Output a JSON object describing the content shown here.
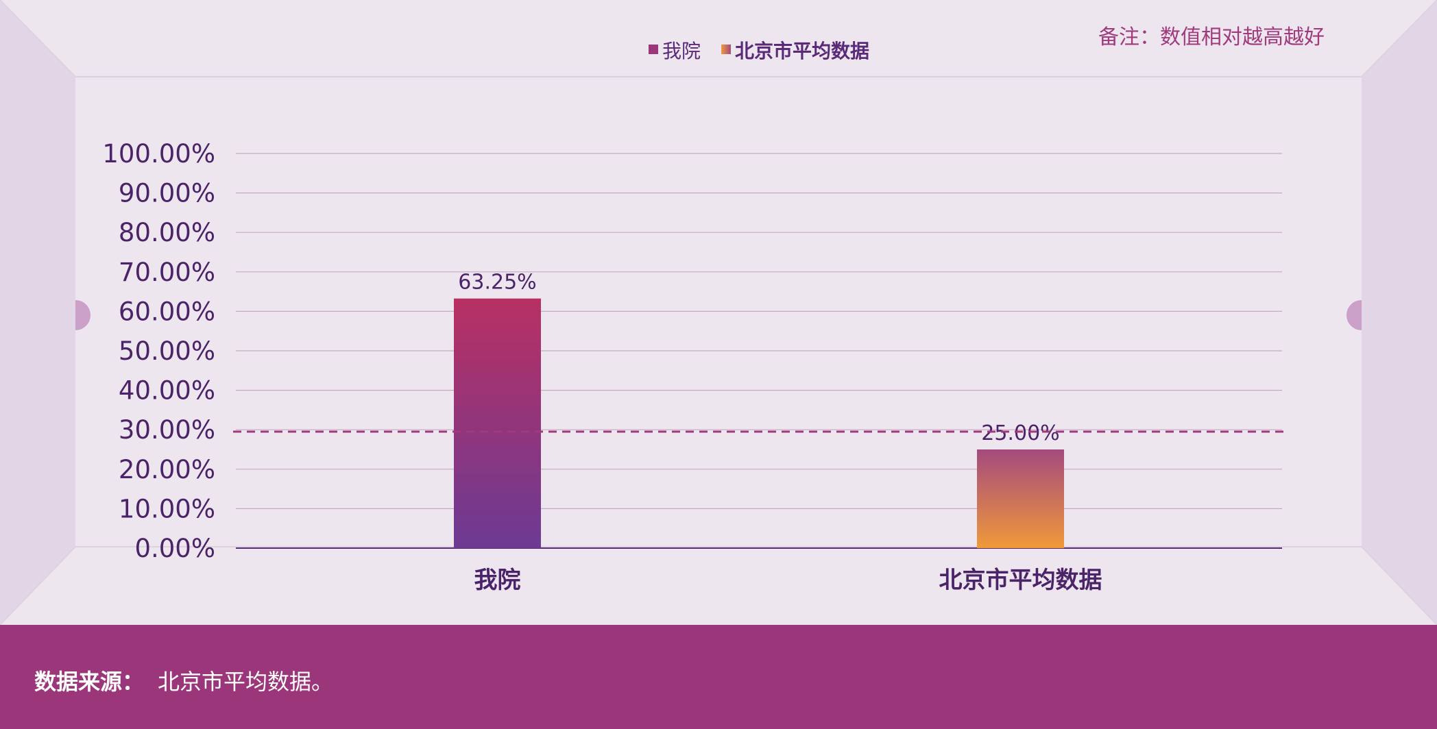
{
  "note": "备注：数值相对越高越好",
  "footer": {
    "source_label": "数据来源：",
    "source_value": "北京市平均数据。"
  },
  "colors": {
    "background": "#ede6ef",
    "side_panel": "#e3d7e6",
    "footer": "#9c367a",
    "note_text": "#a03a7c",
    "axis_text": "#4a2368",
    "gridline": "#c8a9c4",
    "reference_line": "#a03a7c",
    "bar1_top": "#b83063",
    "bar1_bottom": "#6c3a93",
    "bar2_top": "#a44a7e",
    "bar2_bottom": "#f0993a"
  },
  "chart_data": {
    "type": "bar",
    "categories": [
      "我院",
      "北京市平均数据"
    ],
    "values": [
      63.25,
      25.0
    ],
    "data_labels": [
      "63.25%",
      "25.00%"
    ],
    "legend": [
      "我院",
      "北京市平均数据"
    ],
    "legend_position": "top-center",
    "y_ticks": [
      "0.00%",
      "10.00%",
      "20.00%",
      "30.00%",
      "40.00%",
      "50.00%",
      "60.00%",
      "70.00%",
      "80.00%",
      "90.00%",
      "100.00%"
    ],
    "ylim": [
      0,
      100
    ],
    "reference_line": 25,
    "grid": true
  }
}
